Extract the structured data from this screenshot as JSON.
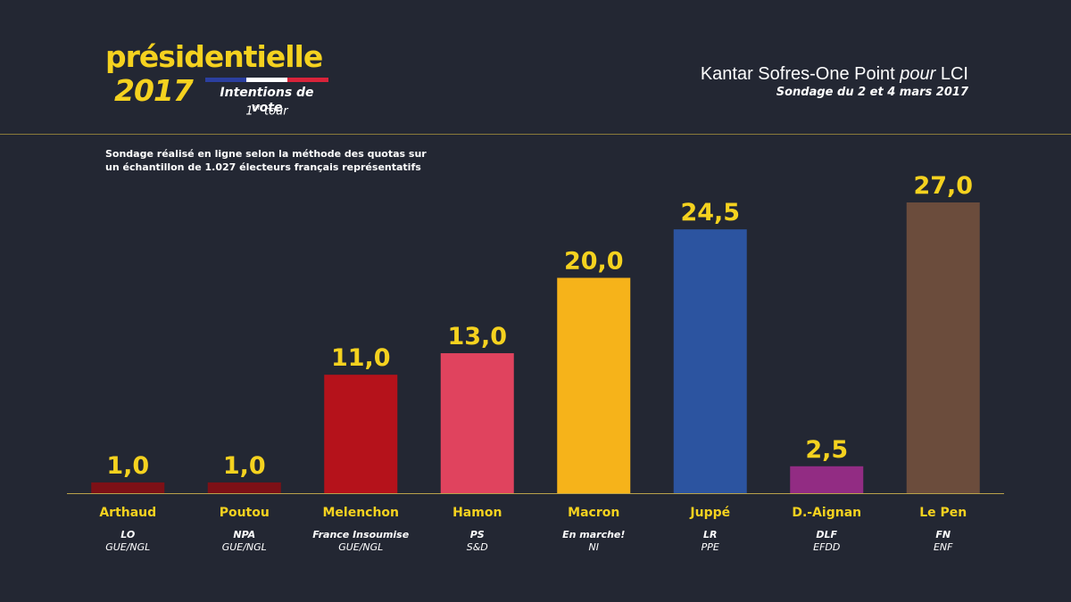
{
  "header": {
    "logo_title": "présidentielle",
    "logo_year": "2017",
    "logo_subtitle": "Intentions de vote",
    "logo_round_num": "1",
    "logo_round_sup": "er",
    "logo_round_word": "tour",
    "flag_colors": [
      "#2b3fa0",
      "#ffffff",
      "#d8233a"
    ],
    "source_main": "Kantar Sofres-One Point ",
    "source_pour": "pour",
    "source_lci": " LCI",
    "source_date": "Sondage du 2 et 4 mars 2017"
  },
  "note": {
    "line1": "Sondage réalisé en ligne selon la méthode des quotas sur",
    "line2": "un échantillon de 1.027 électeurs français représentatifs"
  },
  "chart_data": {
    "type": "bar",
    "title": "Intentions de vote 1er tour",
    "categories": [
      "Arthaud",
      "Poutou",
      "Melenchon",
      "Hamon",
      "Macron",
      "Juppé",
      "D.-Aignan",
      "Le Pen"
    ],
    "values": [
      1.0,
      1.0,
      11.0,
      13.0,
      20.0,
      24.5,
      2.5,
      27.0
    ],
    "value_labels": [
      "1,0",
      "1,0",
      "11,0",
      "13,0",
      "20,0",
      "24,5",
      "2,5",
      "27,0"
    ],
    "parties": [
      "LO",
      "NPA",
      "France Insoumise",
      "PS",
      "En marche!",
      "LR",
      "DLF",
      "FN"
    ],
    "groups": [
      "GUE/NGL",
      "GUE/NGL",
      "GUE/NGL",
      "S&D",
      "NI",
      "PPE",
      "EFDD",
      "ENF"
    ],
    "colors": [
      "#7d1016",
      "#7d1016",
      "#b5121b",
      "#e0435e",
      "#f6b31a",
      "#2c54a0",
      "#922c83",
      "#6b4c3c"
    ],
    "ylim": [
      0,
      27
    ],
    "xlabel": "",
    "ylabel": ""
  }
}
